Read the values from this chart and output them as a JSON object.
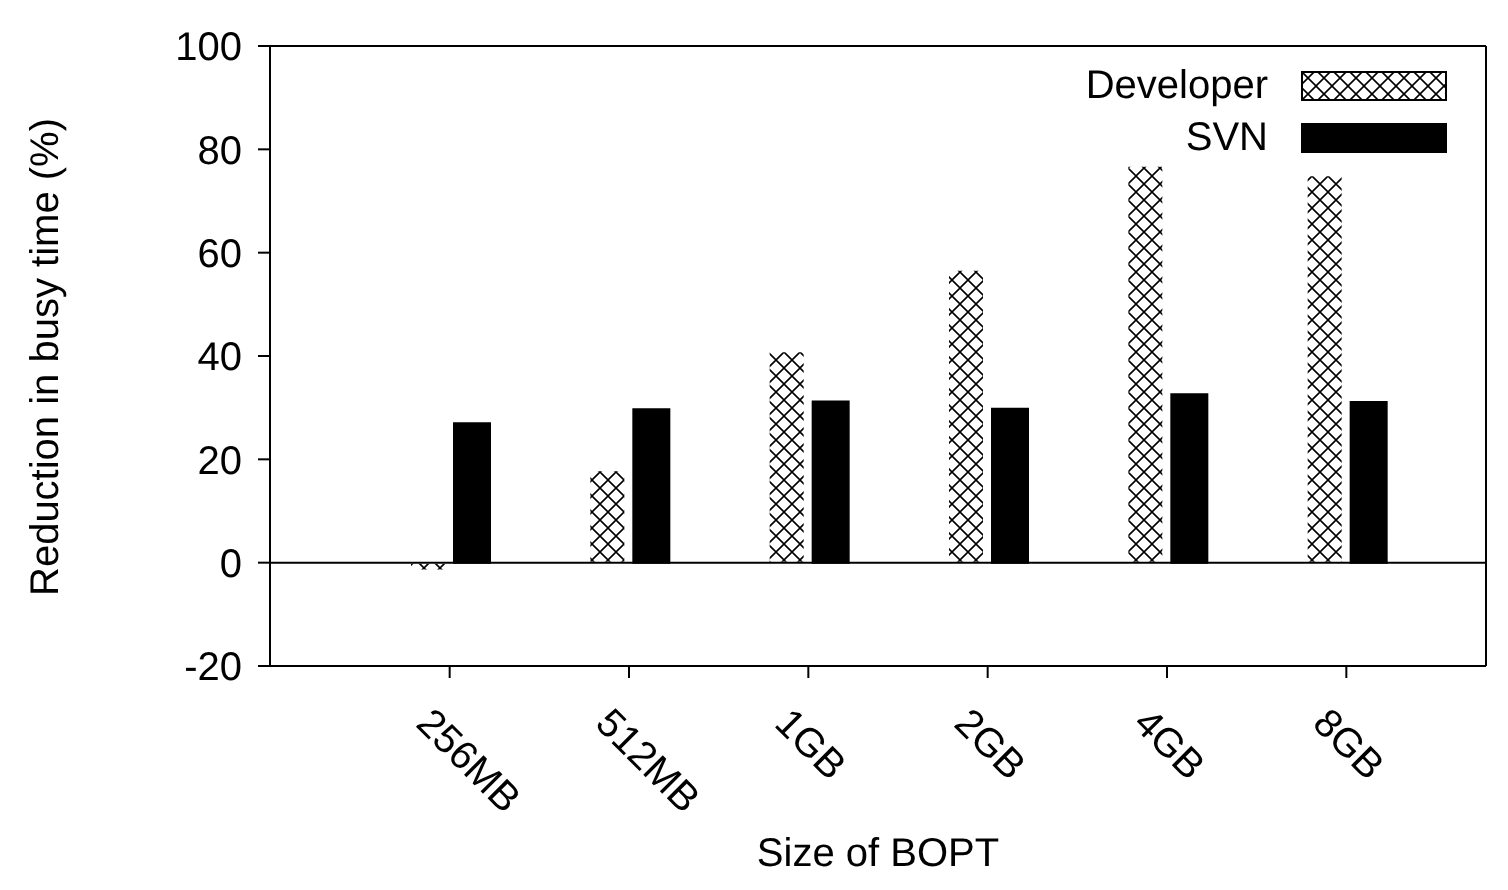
{
  "chart_data": {
    "type": "bar",
    "xlabel": "Size of BOPT",
    "ylabel": "Reduction in busy time (%)",
    "categories": [
      "256MB",
      "512MB",
      "1GB",
      "2GB",
      "4GB",
      "8GB"
    ],
    "series": [
      {
        "name": "Developer",
        "color": "#ffffff",
        "values": [
          -1.5,
          17.9,
          40.9,
          56.7,
          76.8,
          75
        ]
      },
      {
        "name": "SVN",
        "color": "#000000",
        "values": [
          27,
          29.7,
          31.2,
          29.8,
          32.6,
          31.1
        ]
      }
    ],
    "ylim": [
      -20,
      100
    ],
    "yticks": [
      -20,
      0,
      20,
      40,
      60,
      80,
      100
    ],
    "ref_lines": [
      {
        "axis": "y",
        "value": 0,
        "color": "#000000"
      }
    ],
    "legend": "top right"
  }
}
